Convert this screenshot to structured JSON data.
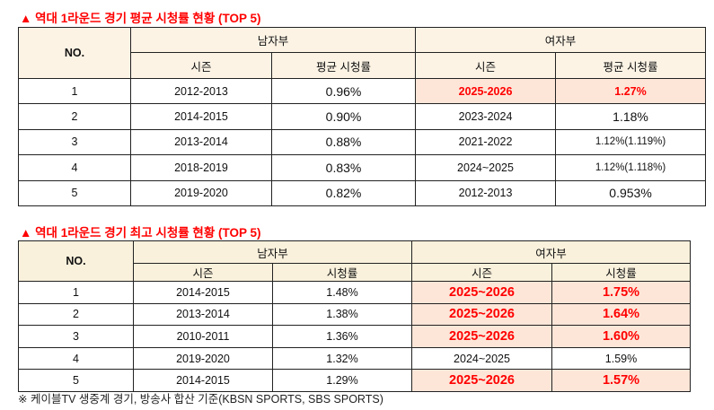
{
  "table1": {
    "title": "▲ 역대 1라운드 경기 평균 시청률 현황 (TOP 5)",
    "no_header": "NO.",
    "men_header": "남자부",
    "women_header": "여자부",
    "season_header": "시즌",
    "rating_header": "평균 시청률",
    "rows": [
      {
        "no": "1",
        "m_season": "2012-2013",
        "m_rating": "0.96%",
        "w_season": "2025-2026",
        "w_rating": "1.27%",
        "highlight": true
      },
      {
        "no": "2",
        "m_season": "2014-2015",
        "m_rating": "0.90%",
        "w_season": "2023-2024",
        "w_rating": "1.18%",
        "highlight": false
      },
      {
        "no": "3",
        "m_season": "2013-2014",
        "m_rating": "0.88%",
        "w_season": "2021-2022",
        "w_rating": "1.12%(1.119%)",
        "highlight": false
      },
      {
        "no": "4",
        "m_season": "2018-2019",
        "m_rating": "0.83%",
        "w_season": "2024~2025",
        "w_rating": "1.12%(1.118%)",
        "highlight": false
      },
      {
        "no": "5",
        "m_season": "2019-2020",
        "m_rating": "0.82%",
        "w_season": "2012-2013",
        "w_rating": "0.953%",
        "highlight": false
      }
    ]
  },
  "table2": {
    "title": "▲ 역대 1라운드 경기 최고 시청률 현황 (TOP 5)",
    "no_header": "NO.",
    "men_header": "남자부",
    "women_header": "여자부",
    "season_header": "시즌",
    "rating_header": "시청률",
    "rows": [
      {
        "no": "1",
        "m_season": "2014-2015",
        "m_rating": "1.48%",
        "w_season": "2025~2026",
        "w_rating": "1.75%",
        "highlight": true
      },
      {
        "no": "2",
        "m_season": "2013-2014",
        "m_rating": "1.38%",
        "w_season": "2025~2026",
        "w_rating": "1.64%",
        "highlight": true
      },
      {
        "no": "3",
        "m_season": "2010-2011",
        "m_rating": "1.36%",
        "w_season": "2025~2026",
        "w_rating": "1.60%",
        "highlight": true
      },
      {
        "no": "4",
        "m_season": "2019-2020",
        "m_rating": "1.32%",
        "w_season": "2024~2025",
        "w_rating": "1.59%",
        "highlight": false
      },
      {
        "no": "5",
        "m_season": "2014-2015",
        "m_rating": "1.29%",
        "w_season": "2025~2026",
        "w_rating": "1.57%",
        "highlight": true
      }
    ]
  },
  "footnote": "※ 케이블TV 생중계 경기, 방송사 합산 기준(KBSN SPORTS, SBS SPORTS)",
  "colors": {
    "accent": "#ff0000",
    "header_bg": "#fcf3e5",
    "highlight_bg": "#fde6d8"
  }
}
